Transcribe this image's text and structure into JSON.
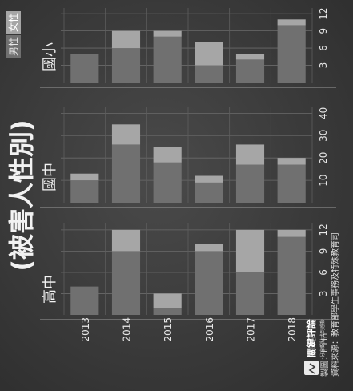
{
  "title": "(被害人性別)",
  "legend": [
    {
      "label": "男性",
      "color": "#707070",
      "text_color": "#e6e6e6"
    },
    {
      "label": "女性",
      "color": "#a6a6a6",
      "text_color": "#ffffff"
    }
  ],
  "credit_maker": "製圖：if Lin",
  "credit_source": "資料來源：教育部學生事務及特殊教育司",
  "brand_name": "關鍵評論",
  "brand_tagline": "分享觀點找到感動",
  "brand_logo_icon": "wave-logo-icon",
  "chart_data": [
    {
      "type": "bar",
      "stacked": true,
      "title": "高中",
      "categories": [
        "2013",
        "2014",
        "2015",
        "2016",
        "2017",
        "2018"
      ],
      "series": [
        {
          "name": "男性",
          "values": [
            4,
            9,
            1,
            9,
            6,
            11
          ]
        },
        {
          "name": "女性",
          "values": [
            0,
            3,
            2,
            1,
            6,
            1
          ]
        }
      ],
      "xlim": [
        0,
        13
      ],
      "ticks": [
        3,
        6,
        9,
        12
      ],
      "grid": true
    },
    {
      "type": "bar",
      "stacked": true,
      "title": "國中",
      "categories": [
        "2013",
        "2014",
        "2015",
        "2016",
        "2017",
        "2018"
      ],
      "series": [
        {
          "name": "男性",
          "values": [
            10,
            26,
            18,
            9,
            17,
            17
          ]
        },
        {
          "name": "女性",
          "values": [
            3,
            9,
            7,
            3,
            9,
            3
          ]
        }
      ],
      "xlim": [
        0,
        43
      ],
      "ticks": [
        10,
        20,
        30,
        40
      ],
      "grid": true
    },
    {
      "type": "bar",
      "stacked": true,
      "title": "國小",
      "categories": [
        "2013",
        "2014",
        "2015",
        "2016",
        "2017",
        "2018"
      ],
      "series": [
        {
          "name": "男性",
          "values": [
            5,
            6,
            8,
            3,
            4,
            10
          ]
        },
        {
          "name": "女性",
          "values": [
            0,
            3,
            1,
            4,
            1,
            1
          ]
        }
      ],
      "xlim": [
        0,
        13
      ],
      "ticks": [
        3,
        6,
        9,
        12
      ],
      "grid": true
    }
  ]
}
